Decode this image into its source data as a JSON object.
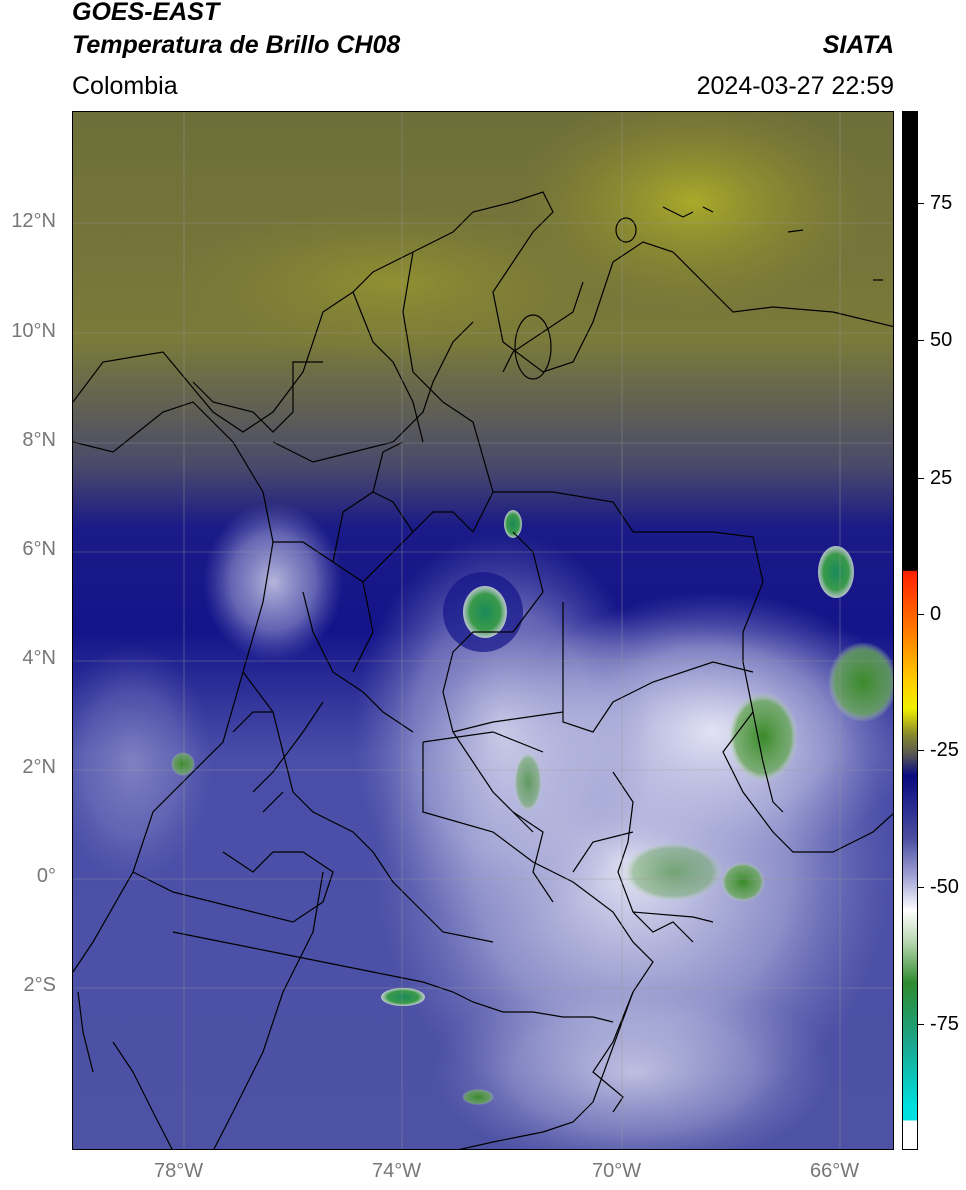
{
  "header": {
    "satellite": "GOES-EAST",
    "product": "Temperatura de Brillo CH08",
    "region": "Colombia",
    "agency": "SIATA",
    "datetime": "2024-03-27 22:59"
  },
  "axes": {
    "lat_labels": [
      "12°N",
      "10°N",
      "8°N",
      "6°N",
      "4°N",
      "2°N",
      "0°",
      "2°S"
    ],
    "lon_labels": [
      "78°W",
      "74°W",
      "70°W",
      "66°W"
    ]
  },
  "colorbar": {
    "ticks": [
      "75",
      "50",
      "25",
      "0",
      "-25",
      "-50",
      "-75"
    ],
    "colors": {
      "black": "#000000",
      "red": "#ff2000",
      "orange": "#ff9900",
      "yellow": "#f0f000",
      "olive": "#8a8a2a",
      "gray": "#555555",
      "navy": "#0a0a80",
      "slate": "#4a4ea0",
      "lavender": "#a8aad8",
      "white": "#ffffff",
      "green": "#2e8a2e",
      "teal": "#1aa890",
      "cyan": "#00e0e0"
    }
  }
}
